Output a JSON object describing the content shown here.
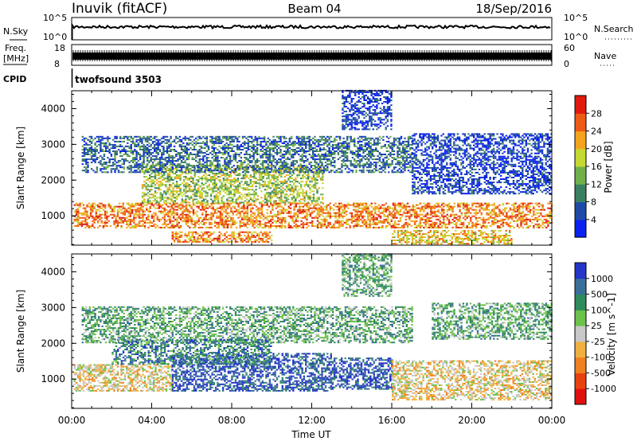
{
  "header": {
    "station": "Inuvik (fitACF)",
    "beam": "Beam 04",
    "date": "18/Sep/2016"
  },
  "mini_panels": {
    "nsky_label": "N.Sky",
    "nsky_ticks": [
      "10^5",
      "10^0"
    ],
    "nsearch_label": "N.Search",
    "nsearch_ticks": [
      "10^5",
      "10^0"
    ],
    "freq_label_line1": "Freq.",
    "freq_label_line2": "[MHz]",
    "freq_ticks": [
      "18",
      "8"
    ],
    "nave_label": "Nave",
    "nave_ticks": [
      "60",
      "0"
    ],
    "cpid_label": "CPID",
    "cpid_value": "twofsound 3503"
  },
  "chart_data": [
    {
      "type": "heatmap",
      "title": "",
      "quantity": "Power",
      "xlabel": "Time UT",
      "ylabel": "Slant Range [km]",
      "xlim": [
        0,
        24
      ],
      "ylim": [
        180,
        4500
      ],
      "x_ticks": [
        "00:00",
        "04:00",
        "08:00",
        "12:00",
        "16:00",
        "20:00",
        "00:00"
      ],
      "y_ticks": [
        "1000",
        "2000",
        "3000",
        "4000"
      ],
      "colorbar_label": "Power [dB]",
      "colorbar_ticks": [
        "4",
        "8",
        "12",
        "16",
        "20",
        "24",
        "28"
      ],
      "colorbar_colors": [
        "#0a22f0",
        "#1f4aa8",
        "#3b7f62",
        "#6fb04a",
        "#c6d832",
        "#f3a41c",
        "#ee5a16",
        "#e01a0d"
      ],
      "bands": [
        {
          "t0": 0.1,
          "t1": 24,
          "r0": 650,
          "r1": 1350,
          "level": 24
        },
        {
          "t0": 3.5,
          "t1": 12.5,
          "r0": 1350,
          "r1": 2400,
          "level": 16
        },
        {
          "t0": 0.5,
          "t1": 17,
          "r0": 2200,
          "r1": 3200,
          "level": 8
        },
        {
          "t0": 17,
          "t1": 24,
          "r0": 1600,
          "r1": 3300,
          "level": 6
        },
        {
          "t0": 5,
          "t1": 10,
          "r0": 250,
          "r1": 550,
          "level": 24
        },
        {
          "t0": 16,
          "t1": 22,
          "r0": 200,
          "r1": 600,
          "level": 22
        },
        {
          "t0": 13.5,
          "t1": 16,
          "r0": 3400,
          "r1": 4500,
          "level": 6
        }
      ]
    },
    {
      "type": "heatmap",
      "title": "",
      "quantity": "Velocity",
      "xlabel": "Time UT",
      "ylabel": "Slant Range [km]",
      "xlim": [
        0,
        24
      ],
      "ylim": [
        180,
        4500
      ],
      "x_ticks": [
        "00:00",
        "04:00",
        "08:00",
        "12:00",
        "16:00",
        "20:00",
        "00:00"
      ],
      "y_ticks": [
        "1000",
        "2000",
        "3000",
        "4000"
      ],
      "colorbar_label": "Velocity [m s^-1]",
      "colorbar_ticks": [
        "1000",
        "500",
        "100",
        "25",
        "-25",
        "-100",
        "-500",
        "-1000"
      ],
      "colorbar_colors": [
        "#2436c8",
        "#3a6f9a",
        "#2f8a5c",
        "#6cc24a",
        "#c8c8c8",
        "#f0b040",
        "#f08020",
        "#e8420f",
        "#e01010"
      ],
      "bands": [
        {
          "t0": 0.1,
          "t1": 5,
          "r0": 650,
          "r1": 1400,
          "level": -300
        },
        {
          "t0": 5,
          "t1": 13,
          "r0": 650,
          "r1": 1700,
          "level": 300
        },
        {
          "t0": 13,
          "t1": 16,
          "r0": 700,
          "r1": 1600,
          "level": 100
        },
        {
          "t0": 16,
          "t1": 24,
          "r0": 400,
          "r1": 1500,
          "level": -300
        },
        {
          "t0": 0.5,
          "t1": 17,
          "r0": 2000,
          "r1": 3000,
          "level": 0
        },
        {
          "t0": 18,
          "t1": 24,
          "r0": 2100,
          "r1": 3100,
          "level": 0
        },
        {
          "t0": 2,
          "t1": 10,
          "r0": 1400,
          "r1": 2100,
          "level": 50
        },
        {
          "t0": 13.5,
          "t1": 16,
          "r0": 3300,
          "r1": 4500,
          "level": 0
        }
      ]
    }
  ]
}
